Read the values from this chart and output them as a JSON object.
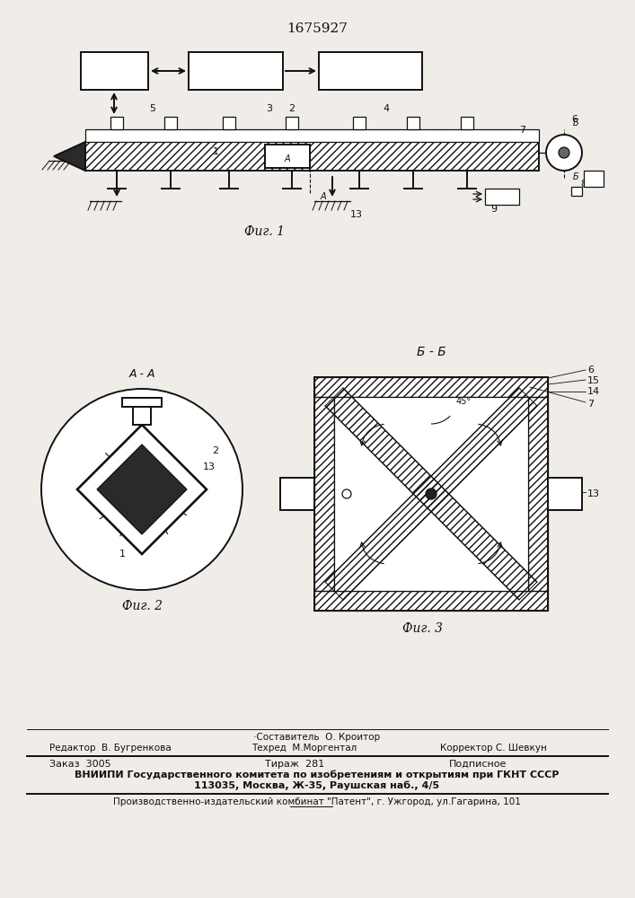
{
  "patent_number": "1675927",
  "bg_color": "#f0ede8",
  "fig1_caption": "Фиг. 1",
  "fig2_caption": "Фиг. 2",
  "fig3_caption": "Фиг. 3",
  "section_aa": "A - A",
  "section_bb": "Б - Б",
  "footer_sestavitel": "·Составитель  О. Кроитор",
  "footer_redaktor": "Редактор  В. Бугренкова",
  "footer_tehred": "Техред  М.Моргентал",
  "footer_korrektor": "Корректор С. Шевкун",
  "footer_zakaz": "Заказ  3005",
  "footer_tirazh": "Тираж  281",
  "footer_podpisnoe": "Подписное",
  "footer_vniipи": "ВНИИПИ Государственного комитета по изобретениям и открытиям при ГКНТ СССР",
  "footer_address": "113035, Москва, Ж-35, Раушская наб., 4/5",
  "footer_patent": "Производственно-издательский комбинат \"Патент\", г. Ужгород, ул.Гагарина, 101"
}
